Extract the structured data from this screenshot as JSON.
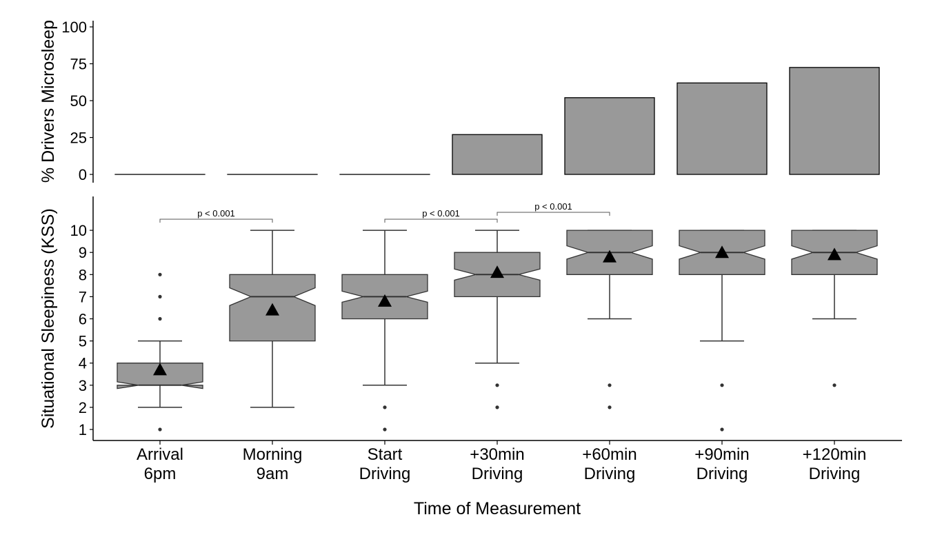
{
  "chart_data": [
    {
      "type": "bar",
      "ylabel": "% Drivers Microsleep",
      "ylim": [
        0,
        100
      ],
      "yticks": [
        "0",
        "25",
        "50",
        "75",
        "100"
      ],
      "categories": [
        "Arrival 6pm",
        "Morning 9am",
        "Start Driving",
        "+30min Driving",
        "+60min Driving",
        "+90min Driving",
        "+120min Driving"
      ],
      "values": [
        0,
        0,
        0,
        27,
        52,
        62,
        72.5
      ],
      "bar_color": "#999999"
    },
    {
      "type": "boxplot",
      "ylabel": "Situational Sleepiness (KSS)",
      "xlabel": "Time of Measurement",
      "ylim": [
        0.5,
        11.5
      ],
      "yticks": [
        "1",
        "2",
        "3",
        "4",
        "5",
        "6",
        "7",
        "8",
        "9",
        "10"
      ],
      "categories": [
        {
          "line1": "Arrival",
          "line2": "6pm"
        },
        {
          "line1": "Morning",
          "line2": "9am"
        },
        {
          "line1": "Start",
          "line2": "Driving"
        },
        {
          "line1": "+30min",
          "line2": "Driving"
        },
        {
          "line1": "+60min",
          "line2": "Driving"
        },
        {
          "line1": "+90min",
          "line2": "Driving"
        },
        {
          "line1": "+120min",
          "line2": "Driving"
        }
      ],
      "boxes": [
        {
          "q1": 3,
          "median": 3,
          "q3": 4,
          "whisker_low": 2,
          "whisker_high": 5,
          "notch_low": 2.85,
          "notch_high": 3.15,
          "mean": 3.7,
          "outliers": [
            1,
            6,
            7,
            8
          ]
        },
        {
          "q1": 5,
          "median": 7,
          "q3": 8,
          "whisker_low": 2,
          "whisker_high": 10,
          "notch_low": 6.6,
          "notch_high": 7.4,
          "mean": 6.4,
          "outliers": []
        },
        {
          "q1": 6,
          "median": 7,
          "q3": 8,
          "whisker_low": 3,
          "whisker_high": 10,
          "notch_low": 6.75,
          "notch_high": 7.25,
          "mean": 6.8,
          "outliers": [
            1,
            2
          ]
        },
        {
          "q1": 7,
          "median": 8,
          "q3": 9,
          "whisker_low": 4,
          "whisker_high": 10,
          "notch_low": 7.75,
          "notch_high": 8.25,
          "mean": 8.1,
          "outliers": [
            2,
            3
          ]
        },
        {
          "q1": 8,
          "median": 9,
          "q3": 10,
          "whisker_low": 6,
          "whisker_high": 10,
          "notch_low": 8.7,
          "notch_high": 9.3,
          "mean": 8.8,
          "outliers": [
            2,
            3
          ]
        },
        {
          "q1": 8,
          "median": 9,
          "q3": 10,
          "whisker_low": 5,
          "whisker_high": 10,
          "notch_low": 8.7,
          "notch_high": 9.3,
          "mean": 9.0,
          "outliers": [
            1,
            3
          ]
        },
        {
          "q1": 8,
          "median": 9,
          "q3": 10,
          "whisker_low": 6,
          "whisker_high": 10,
          "notch_low": 8.7,
          "notch_high": 9.3,
          "mean": 8.9,
          "outliers": [
            3
          ]
        }
      ],
      "box_color": "#999999",
      "significance": [
        {
          "from": 0,
          "to": 1,
          "label": "p < 0.001"
        },
        {
          "from": 2,
          "to": 3,
          "label": "p < 0.001"
        },
        {
          "from": 3,
          "to": 4,
          "label": "p < 0.001"
        }
      ]
    }
  ]
}
